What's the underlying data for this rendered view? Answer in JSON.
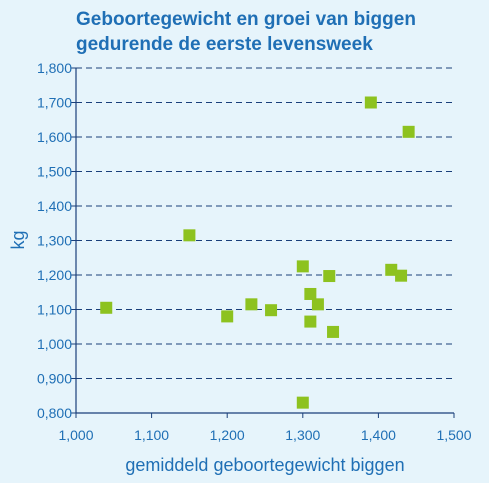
{
  "chart_data": {
    "type": "scatter",
    "title_lines": [
      "Geboortegewicht en groei van biggen",
      "gedurende de eerste levensweek"
    ],
    "xlabel": "gemiddeld geboortegewicht biggen",
    "ylabel": "kg",
    "xlim": [
      1.0,
      1.5
    ],
    "ylim": [
      0.8,
      1.8
    ],
    "x_ticks": [
      1.0,
      1.1,
      1.2,
      1.3,
      1.4,
      1.5
    ],
    "x_tick_labels": [
      "1,000",
      "1,100",
      "1,200",
      "1,300",
      "1,400",
      "1,500"
    ],
    "y_ticks": [
      0.8,
      0.9,
      1.0,
      1.1,
      1.2,
      1.3,
      1.4,
      1.5,
      1.6,
      1.7,
      1.8
    ],
    "y_tick_labels": [
      "0,800",
      "0,900",
      "1,000",
      "1,100",
      "1,200",
      "1,300",
      "1,400",
      "1,500",
      "1,600",
      "1,700",
      "1,800"
    ],
    "grid": "horizontal dashed",
    "marker": "square",
    "colors": {
      "background": "#e6f4fb",
      "text": "#1f6fb5",
      "axis": "#1a3f7a",
      "marker": "#8dc21f"
    },
    "points": [
      {
        "x": 1.04,
        "y": 1.105
      },
      {
        "x": 1.15,
        "y": 1.315
      },
      {
        "x": 1.2,
        "y": 1.08
      },
      {
        "x": 1.232,
        "y": 1.115
      },
      {
        "x": 1.258,
        "y": 1.098
      },
      {
        "x": 1.3,
        "y": 1.225
      },
      {
        "x": 1.31,
        "y": 1.145
      },
      {
        "x": 1.32,
        "y": 1.115
      },
      {
        "x": 1.31,
        "y": 1.065
      },
      {
        "x": 1.335,
        "y": 1.197
      },
      {
        "x": 1.34,
        "y": 1.035
      },
      {
        "x": 1.3,
        "y": 0.83
      },
      {
        "x": 1.39,
        "y": 1.7
      },
      {
        "x": 1.44,
        "y": 1.615
      },
      {
        "x": 1.417,
        "y": 1.215
      },
      {
        "x": 1.43,
        "y": 1.198
      }
    ]
  }
}
